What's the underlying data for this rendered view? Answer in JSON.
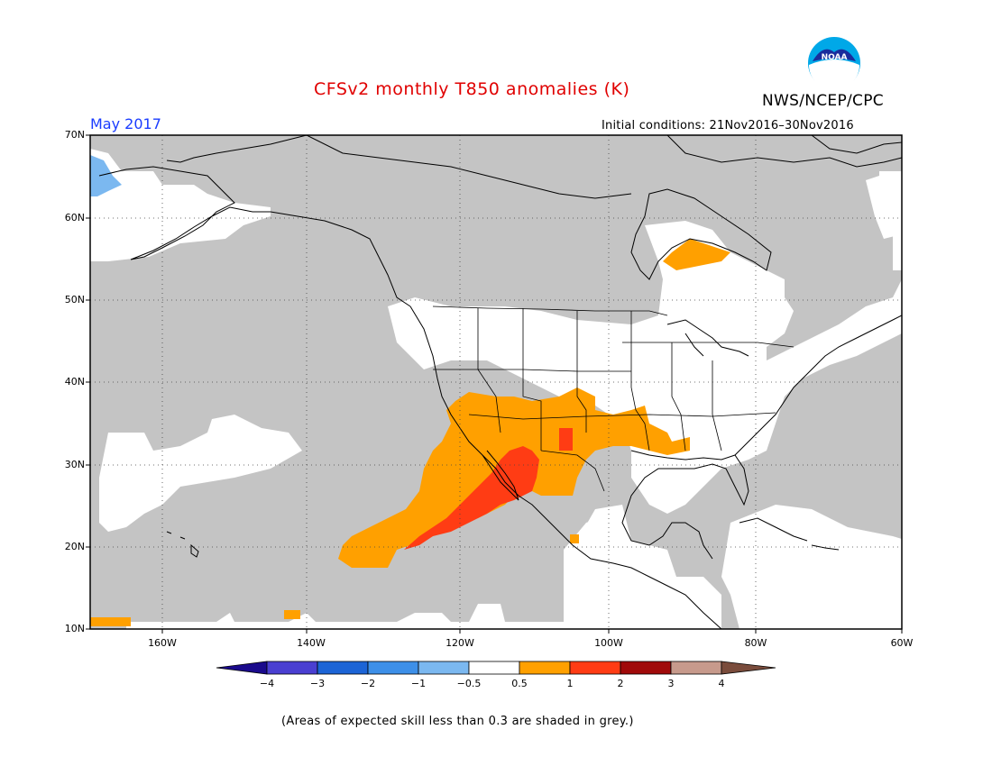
{
  "header": {
    "title": "CFSv2 monthly T850 anomalies (K)",
    "target_month": "May 2017",
    "initial_conditions": "Initial conditions: 21Nov2016–30Nov2016",
    "organization": "NWS/NCEP/CPC",
    "logo_icon": "noaa-logo-icon"
  },
  "map": {
    "lat_labels": [
      "70N",
      "60N",
      "50N",
      "40N",
      "30N",
      "20N",
      "10N"
    ],
    "lon_labels": [
      "160W",
      "140W",
      "120W",
      "100W",
      "80W",
      "60W"
    ],
    "extent": {
      "lon_min": -172,
      "lon_max": -60,
      "lat_min": 10,
      "lat_max": 70
    },
    "mask_color": "#c4c4c4",
    "land_outline_color": "#000000"
  },
  "colorbar": {
    "ticks": [
      "−4",
      "−3",
      "−2",
      "−1",
      "−0.5",
      "0.5",
      "1",
      "2",
      "3",
      "4"
    ],
    "colors": [
      "#1a0a8c",
      "#4a3fd1",
      "#1c64d6",
      "#3d8fe8",
      "#7bb8f0",
      "#ffffff",
      "#ffa000",
      "#ff3c14",
      "#a00a0a",
      "#c79a8c",
      "#7a4c3c"
    ]
  },
  "footnote": "(Areas of expected skill less than 0.3 are shaded in grey.)"
}
